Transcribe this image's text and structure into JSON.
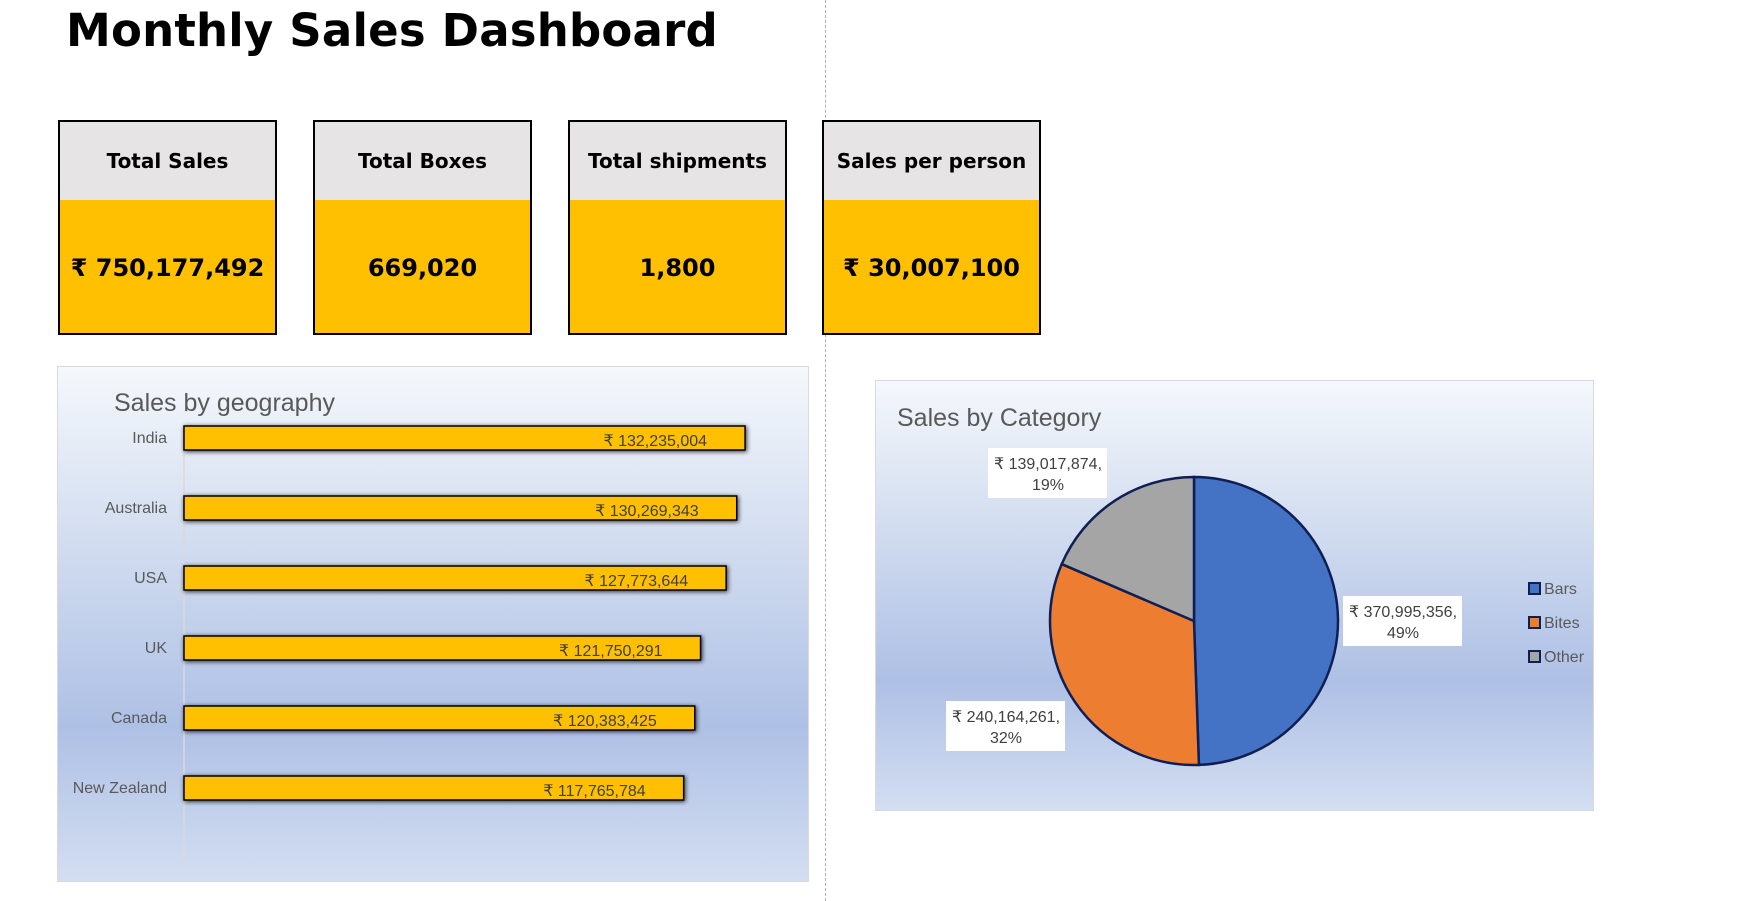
{
  "dashboard": {
    "title": "Monthly Sales Dashboard"
  },
  "kpis": [
    {
      "label": "Total Sales",
      "value": "₹ 750,177,492"
    },
    {
      "label": "Total Boxes",
      "value": "669,020"
    },
    {
      "label": "Total shipments",
      "value": "1,800"
    },
    {
      "label": "Sales per person",
      "value": "₹ 30,007,100"
    }
  ],
  "colors": {
    "kpi_header": "#e6e4e4",
    "kpi_value": "#fec000",
    "bar_fill": "#fec000",
    "pie_bars": "#4472c4",
    "pie_bites": "#ed7d31",
    "pie_other": "#a5a5a5",
    "pie_outline": "#0f1f54"
  },
  "chart_data": [
    {
      "type": "bar",
      "orientation": "horizontal",
      "title": "Sales by geography",
      "categories": [
        "India",
        "Australia",
        "USA",
        "UK",
        "Canada",
        "New Zealand"
      ],
      "values": [
        132235004,
        130269343,
        127773644,
        121750291,
        120383425,
        117765784
      ],
      "data_labels": [
        "₹ 132,235,004",
        "₹ 130,269,343",
        "₹ 127,773,644",
        "₹ 121,750,291",
        "₹ 120,383,425",
        "₹ 117,765,784"
      ],
      "xlim": [
        0,
        140000000
      ],
      "grid": false,
      "legend": "none"
    },
    {
      "type": "pie",
      "title": "Sales by Category",
      "categories": [
        "Bars",
        "Bites",
        "Other"
      ],
      "values": [
        370995356,
        240164261,
        139017874
      ],
      "percents": [
        "49%",
        "32%",
        "19%"
      ],
      "data_labels": [
        "₹ 370,995,356,",
        "₹ 240,164,261,",
        "₹ 139,017,874,"
      ],
      "legend": "right"
    }
  ]
}
